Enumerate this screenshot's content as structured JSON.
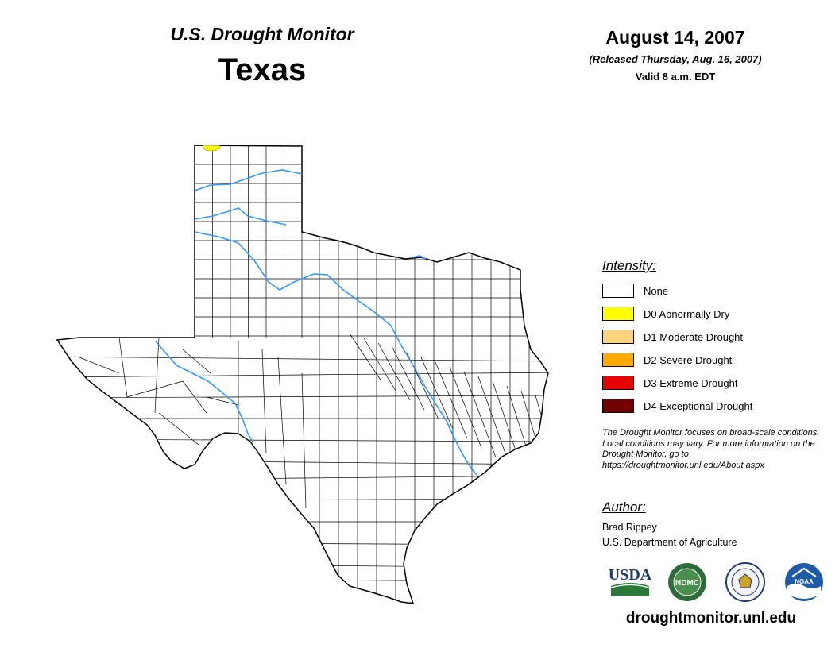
{
  "header": {
    "monitor_title": "U.S. Drought Monitor",
    "state_name": "Texas",
    "date": "August 14, 2007",
    "released": "(Released Thursday, Aug. 16, 2007)",
    "valid": "Valid 8 a.m. EDT"
  },
  "legend": {
    "title": "Intensity:",
    "items": [
      {
        "label": "None",
        "color": "#ffffff"
      },
      {
        "label": "D0 Abnormally Dry",
        "color": "#ffff00"
      },
      {
        "label": "D1 Moderate Drought",
        "color": "#fcd37f"
      },
      {
        "label": "D2 Severe Drought",
        "color": "#ffaa00"
      },
      {
        "label": "D3 Extreme Drought",
        "color": "#e60000"
      },
      {
        "label": "D4 Exceptional Drought",
        "color": "#730000"
      }
    ]
  },
  "note": "The Drought Monitor focuses on broad-scale conditions. Local conditions may vary. For more information on the Drought Monitor, go to https://droughtmonitor.unl.edu/About.aspx",
  "author": {
    "title": "Author:",
    "name": "Brad Rippey",
    "organization": "U.S. Department of Agriculture"
  },
  "logos": {
    "usda": "USDA",
    "ndmc": "NDMC",
    "noaa": "NOAA"
  },
  "site_url": "droughtmonitor.unl.edu",
  "colors": {
    "river": "#3399ff",
    "county_border": "#000000",
    "drought_d0": "#ffff00"
  }
}
